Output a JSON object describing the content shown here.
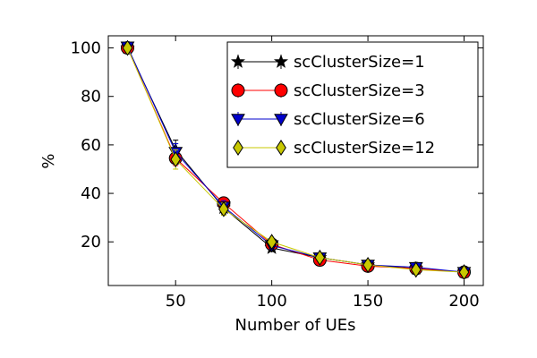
{
  "chart_data": {
    "type": "line",
    "xlabel": "Number of UEs",
    "ylabel": "%",
    "xlim": [
      15,
      210
    ],
    "ylim": [
      2,
      105
    ],
    "xticks": [
      50,
      100,
      150,
      200
    ],
    "yticks": [
      20,
      40,
      60,
      80,
      100
    ],
    "grid": false,
    "legend_position": "top-right",
    "x": [
      25,
      50,
      75,
      100,
      125,
      150,
      175,
      200
    ],
    "series": [
      {
        "name": "scClusterSize=1",
        "color": "#000000",
        "marker": "star",
        "values": [
          100,
          58,
          34,
          17.5,
          13.5,
          10.5,
          9,
          7.5
        ],
        "errors": [
          1.5,
          4,
          2.5,
          1.5,
          1,
          1,
          1,
          1
        ]
      },
      {
        "name": "scClusterSize=3",
        "color": "#ff0000",
        "marker": "circle",
        "values": [
          100,
          54.5,
          36,
          19,
          12.5,
          10,
          9,
          7.5
        ],
        "errors": [
          1.5,
          3,
          2,
          1.5,
          1,
          1,
          1,
          1
        ]
      },
      {
        "name": "scClusterSize=6",
        "color": "#0000cc",
        "marker": "triangle-down",
        "values": [
          100.5,
          57,
          34.5,
          18.5,
          13.5,
          10.5,
          9.5,
          7.5
        ],
        "errors": [
          1.5,
          3.5,
          2.5,
          1.5,
          1,
          1,
          1,
          1
        ]
      },
      {
        "name": "scClusterSize=12",
        "color": "#c8c800",
        "marker": "diamond",
        "values": [
          100,
          54,
          33.5,
          20,
          13.5,
          10.5,
          8.5,
          7.5
        ],
        "errors": [
          1.5,
          4,
          2.5,
          1.5,
          1,
          1,
          1,
          1
        ]
      }
    ]
  }
}
